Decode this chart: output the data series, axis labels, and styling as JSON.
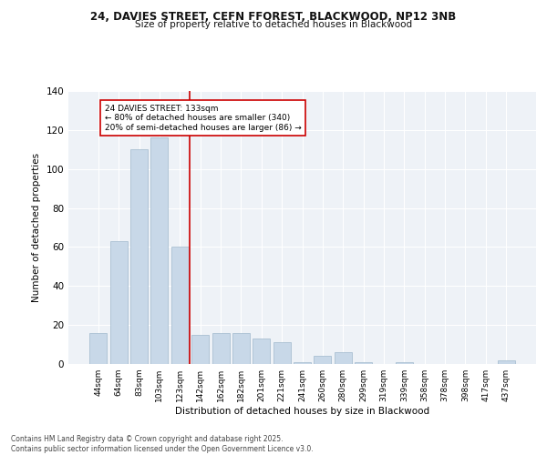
{
  "title1": "24, DAVIES STREET, CEFN FFOREST, BLACKWOOD, NP12 3NB",
  "title2": "Size of property relative to detached houses in Blackwood",
  "xlabel": "Distribution of detached houses by size in Blackwood",
  "ylabel": "Number of detached properties",
  "categories": [
    "44sqm",
    "64sqm",
    "83sqm",
    "103sqm",
    "123sqm",
    "142sqm",
    "162sqm",
    "182sqm",
    "201sqm",
    "221sqm",
    "241sqm",
    "260sqm",
    "280sqm",
    "299sqm",
    "319sqm",
    "339sqm",
    "358sqm",
    "378sqm",
    "398sqm",
    "417sqm",
    "437sqm"
  ],
  "values": [
    16,
    63,
    110,
    116,
    60,
    15,
    16,
    16,
    13,
    11,
    1,
    4,
    6,
    1,
    0,
    1,
    0,
    0,
    0,
    0,
    2
  ],
  "bar_color": "#c8d8e8",
  "bar_edge_color": "#a0b8cc",
  "vline_x_idx": 4.5,
  "vline_color": "#cc0000",
  "annotation_text": "24 DAVIES STREET: 133sqm\n← 80% of detached houses are smaller (340)\n20% of semi-detached houses are larger (86) →",
  "annotation_box_color": "#ffffff",
  "annotation_box_edge": "#cc0000",
  "ylim": [
    0,
    140
  ],
  "yticks": [
    0,
    20,
    40,
    60,
    80,
    100,
    120,
    140
  ],
  "bg_color": "#eef2f7",
  "fig_bg_color": "#ffffff",
  "footer": "Contains HM Land Registry data © Crown copyright and database right 2025.\nContains public sector information licensed under the Open Government Licence v3.0."
}
